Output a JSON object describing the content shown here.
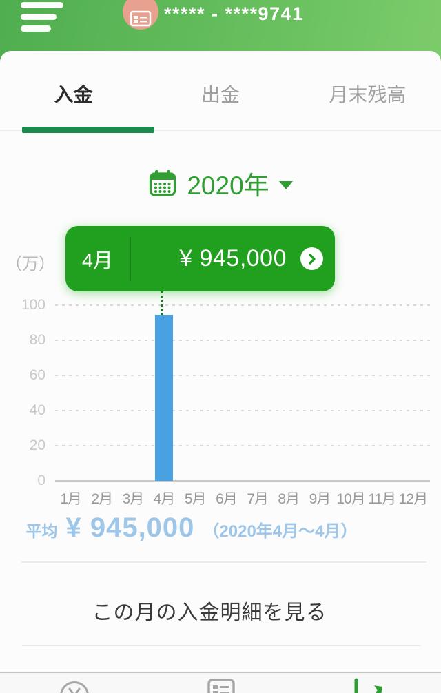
{
  "header": {
    "account_masked": "***** - ****9741",
    "icons": [
      "hamburger-icon",
      "passbook-chip-icon"
    ]
  },
  "tabs": [
    {
      "label": "入金",
      "active": true
    },
    {
      "label": "出金",
      "active": false
    },
    {
      "label": "月末残高",
      "active": false
    }
  ],
  "year_selector": {
    "label": "2020年",
    "icons": [
      "calendar-icon",
      "caret-down-icon"
    ]
  },
  "tooltip": {
    "month": "4月",
    "amount": "¥ 945,000",
    "icon": "chevron-right-icon"
  },
  "chart_data": {
    "type": "bar",
    "title": "",
    "unit_label": "（万）",
    "categories": [
      "1月",
      "2月",
      "3月",
      "4月",
      "5月",
      "6月",
      "7月",
      "8月",
      "9月",
      "10月",
      "11月",
      "12月"
    ],
    "values": [
      null,
      null,
      null,
      94.5,
      null,
      null,
      null,
      null,
      null,
      null,
      null,
      null
    ],
    "yticks": [
      0,
      20,
      40,
      60,
      80,
      100
    ],
    "ylim": [
      0,
      100
    ],
    "xlabel": "",
    "ylabel": "（万）",
    "grid": "dashed horizontal",
    "legend": "none",
    "bar_color": "#4aa1e1",
    "selected": {
      "index": 3,
      "month": "4月",
      "amount_yen": "¥ 945,000"
    }
  },
  "average": {
    "prefix": "平均",
    "amount": "¥ 945,000",
    "range": "（2020年4月〜4月）"
  },
  "details_link": {
    "label": "この月の入金明細を見る"
  },
  "footer": {
    "items": [
      {
        "icon": "yen-circle-icon",
        "name": "balance-tab"
      },
      {
        "icon": "passbook-icon",
        "name": "passbook-tab"
      },
      {
        "icon": "trend-chart-icon",
        "name": "chart-tab",
        "active": true
      }
    ]
  },
  "colors": {
    "header_gradient_start": "#4fae4f",
    "header_gradient_end": "#8ad374",
    "accent_green": "#2f9e33",
    "tooltip_green": "#21a01f",
    "underline_green": "#1c8a4e",
    "chip_salmon": "#e8a18f",
    "bar_blue": "#4aa1e1",
    "average_blue": "#9dc6e8"
  }
}
